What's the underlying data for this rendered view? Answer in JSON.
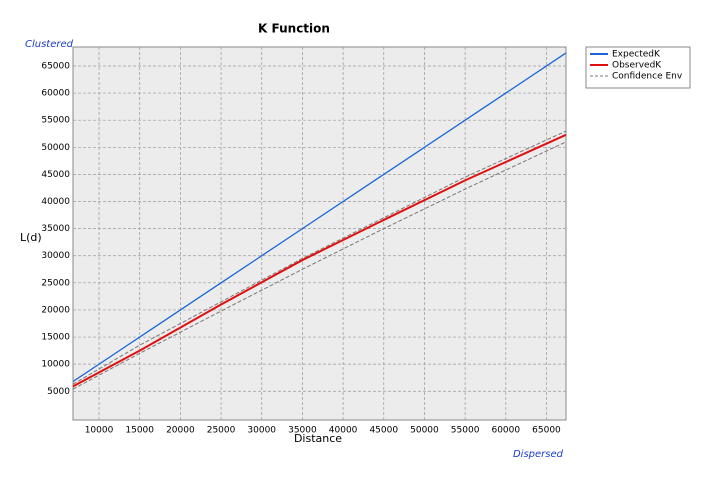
{
  "chart_data": {
    "type": "line",
    "title": "K Function",
    "x_label": "Distance",
    "y_label": "L(d)",
    "annotations": {
      "top": "Clustered",
      "bottom": "Dispersed"
    },
    "x": [
      6800,
      15000,
      25000,
      35000,
      45000,
      55000,
      67400
    ],
    "series": [
      {
        "name": "ExpectedK",
        "color": "#1a66d9",
        "values": [
          6800,
          15000,
          25000,
          35000,
          45000,
          55000,
          67400
        ]
      },
      {
        "name": "ObservedK",
        "color": "#e01010",
        "values": [
          5900,
          12500,
          21000,
          29200,
          36600,
          43900,
          52300
        ]
      }
    ],
    "envelope": {
      "name": "Confidence Env",
      "color": "#777777",
      "upper": [
        6300,
        13500,
        21500,
        29500,
        37000,
        44500,
        53000
      ],
      "lower": [
        5400,
        12000,
        19800,
        27500,
        35000,
        42300,
        51000
      ]
    },
    "xlim": [
      6800,
      67400
    ],
    "ylim": [
      -300,
      68500
    ],
    "xticks": [
      10000,
      15000,
      20000,
      25000,
      30000,
      35000,
      40000,
      45000,
      50000,
      55000,
      60000,
      65000
    ],
    "yticks": [
      5000,
      10000,
      15000,
      20000,
      25000,
      30000,
      35000,
      40000,
      45000,
      50000,
      55000,
      60000,
      65000
    ],
    "grid": true,
    "legend": "outside-right"
  }
}
